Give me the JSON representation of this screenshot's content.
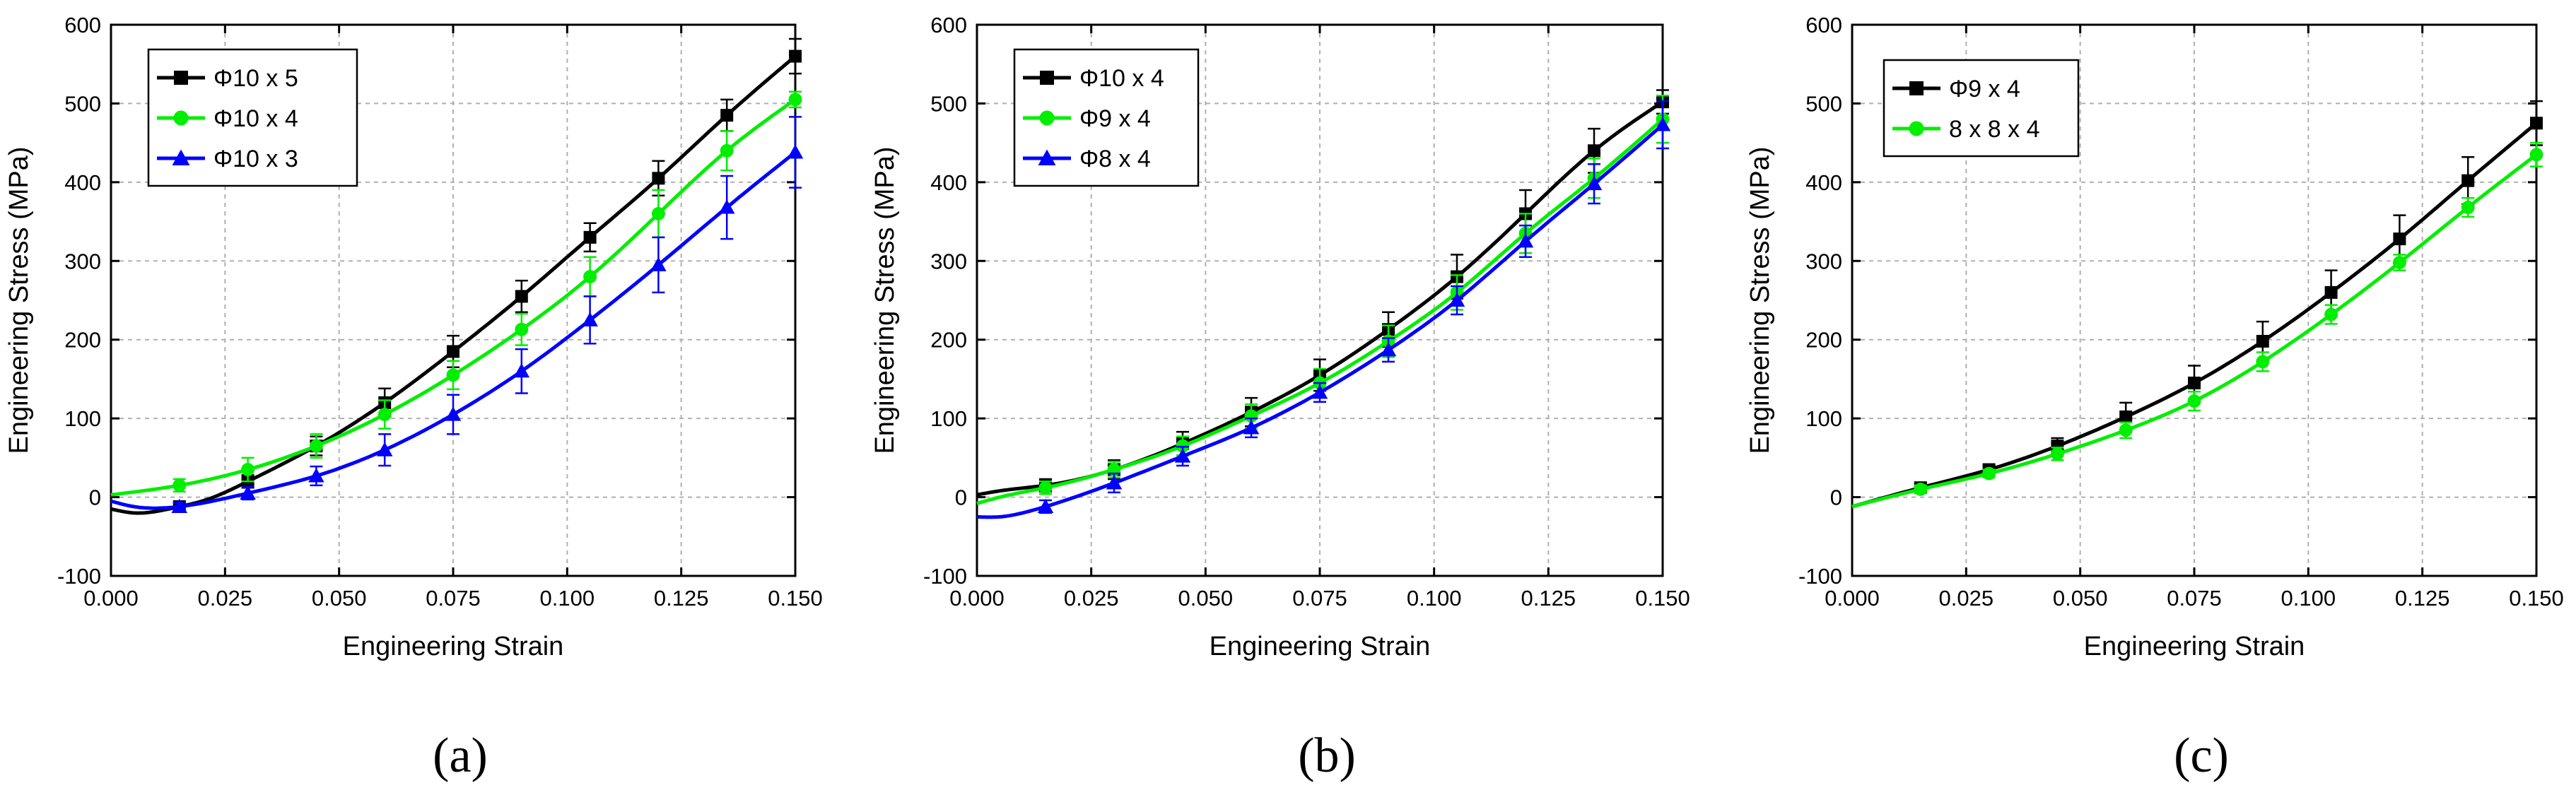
{
  "chart_data": [
    {
      "type": "line",
      "panel_label": "(a)",
      "xlabel": "Engineering Strain",
      "ylabel": "Engineering Stress (MPa)",
      "xlim": [
        0,
        0.15
      ],
      "ylim": [
        -100,
        600
      ],
      "xticks": [
        0,
        0.025,
        0.05,
        0.075,
        0.1,
        0.125,
        0.15
      ],
      "xtick_labels": [
        "0.000",
        "0.025",
        "0.050",
        "0.075",
        "0.100",
        "0.125",
        "0.150"
      ],
      "yticks": [
        -100,
        0,
        100,
        200,
        300,
        400,
        500,
        600
      ],
      "ytick_labels": [
        "-100",
        "0",
        "100",
        "200",
        "300",
        "400",
        "500",
        "600"
      ],
      "grid": true,
      "legend_position": "top-left",
      "series": [
        {
          "name": "Φ10 x 5",
          "color": "#000000",
          "marker": "square",
          "curve": [
            [
              0,
              -15
            ],
            [
              0.005,
              -20
            ],
            [
              0.01,
              -18
            ],
            [
              0.015,
              -12
            ],
            [
              0.02,
              -5
            ],
            [
              0.03,
              20
            ],
            [
              0.045,
              65
            ],
            [
              0.06,
              120
            ],
            [
              0.075,
              185
            ],
            [
              0.09,
              255
            ],
            [
              0.105,
              330
            ],
            [
              0.12,
              405
            ],
            [
              0.135,
              485
            ],
            [
              0.15,
              560
            ]
          ],
          "points": [
            [
              0.015,
              -12
            ],
            [
              0.03,
              20
            ],
            [
              0.045,
              65
            ],
            [
              0.06,
              120
            ],
            [
              0.075,
              185
            ],
            [
              0.09,
              255
            ],
            [
              0.105,
              330
            ],
            [
              0.12,
              405
            ],
            [
              0.135,
              485
            ],
            [
              0.15,
              560
            ]
          ],
          "errors": [
            5,
            8,
            12,
            18,
            20,
            20,
            18,
            22,
            20,
            22
          ]
        },
        {
          "name": "Φ10 x 4",
          "color": "#00ee00",
          "marker": "circle",
          "curve": [
            [
              0,
              3
            ],
            [
              0.015,
              15
            ],
            [
              0.03,
              35
            ],
            [
              0.045,
              65
            ],
            [
              0.06,
              105
            ],
            [
              0.075,
              155
            ],
            [
              0.09,
              213
            ],
            [
              0.105,
              280
            ],
            [
              0.12,
              360
            ],
            [
              0.135,
              440
            ],
            [
              0.15,
              505
            ]
          ],
          "points": [
            [
              0.015,
              15
            ],
            [
              0.03,
              35
            ],
            [
              0.045,
              65
            ],
            [
              0.06,
              105
            ],
            [
              0.075,
              155
            ],
            [
              0.09,
              213
            ],
            [
              0.105,
              280
            ],
            [
              0.12,
              360
            ],
            [
              0.135,
              440
            ],
            [
              0.15,
              505
            ]
          ],
          "errors": [
            8,
            15,
            15,
            18,
            18,
            20,
            25,
            30,
            25,
            10
          ]
        },
        {
          "name": "Φ10 x 3",
          "color": "#0000ff",
          "marker": "triangle",
          "curve": [
            [
              0,
              -5
            ],
            [
              0.005,
              -12
            ],
            [
              0.01,
              -14
            ],
            [
              0.015,
              -12
            ],
            [
              0.03,
              5
            ],
            [
              0.045,
              27
            ],
            [
              0.06,
              60
            ],
            [
              0.075,
              105
            ],
            [
              0.09,
              160
            ],
            [
              0.105,
              225
            ],
            [
              0.12,
              295
            ],
            [
              0.135,
              368
            ],
            [
              0.15,
              438
            ]
          ],
          "points": [
            [
              0.015,
              -12
            ],
            [
              0.03,
              5
            ],
            [
              0.045,
              27
            ],
            [
              0.06,
              60
            ],
            [
              0.075,
              105
            ],
            [
              0.09,
              160
            ],
            [
              0.105,
              225
            ],
            [
              0.12,
              295
            ],
            [
              0.135,
              368
            ],
            [
              0.15,
              438
            ]
          ],
          "errors": [
            5,
            8,
            12,
            20,
            25,
            28,
            30,
            35,
            40,
            45
          ]
        }
      ]
    },
    {
      "type": "line",
      "panel_label": "(b)",
      "xlabel": "Engineering Strain",
      "ylabel": "Engineering Stress (MPa)",
      "xlim": [
        0,
        0.15
      ],
      "ylim": [
        -100,
        600
      ],
      "xticks": [
        0,
        0.025,
        0.05,
        0.075,
        0.1,
        0.125,
        0.15
      ],
      "xtick_labels": [
        "0.000",
        "0.025",
        "0.050",
        "0.075",
        "0.100",
        "0.125",
        "0.150"
      ],
      "yticks": [
        -100,
        0,
        100,
        200,
        300,
        400,
        500,
        600
      ],
      "ytick_labels": [
        "-100",
        "0",
        "100",
        "200",
        "300",
        "400",
        "500",
        "600"
      ],
      "grid": true,
      "legend_position": "top-left",
      "series": [
        {
          "name": "Φ10 x 4",
          "color": "#000000",
          "marker": "square",
          "curve": [
            [
              0,
              3
            ],
            [
              0.005,
              8
            ],
            [
              0.015,
              15
            ],
            [
              0.03,
              35
            ],
            [
              0.045,
              68
            ],
            [
              0.06,
              108
            ],
            [
              0.075,
              155
            ],
            [
              0.09,
              213
            ],
            [
              0.105,
              280
            ],
            [
              0.12,
              360
            ],
            [
              0.135,
              440
            ],
            [
              0.15,
              502
            ]
          ],
          "points": [
            [
              0.015,
              15
            ],
            [
              0.03,
              35
            ],
            [
              0.045,
              68
            ],
            [
              0.06,
              108
            ],
            [
              0.075,
              155
            ],
            [
              0.09,
              213
            ],
            [
              0.105,
              280
            ],
            [
              0.12,
              360
            ],
            [
              0.135,
              440
            ],
            [
              0.15,
              502
            ]
          ],
          "errors": [
            8,
            12,
            15,
            18,
            20,
            22,
            28,
            30,
            28,
            15
          ]
        },
        {
          "name": "Φ9 x 4",
          "color": "#00ee00",
          "marker": "circle",
          "curve": [
            [
              0,
              -8
            ],
            [
              0.005,
              0
            ],
            [
              0.015,
              12
            ],
            [
              0.03,
              35
            ],
            [
              0.045,
              65
            ],
            [
              0.06,
              103
            ],
            [
              0.075,
              145
            ],
            [
              0.09,
              198
            ],
            [
              0.105,
              260
            ],
            [
              0.12,
              335
            ],
            [
              0.135,
              405
            ],
            [
              0.15,
              480
            ]
          ],
          "points": [
            [
              0.015,
              12
            ],
            [
              0.03,
              35
            ],
            [
              0.045,
              65
            ],
            [
              0.06,
              103
            ],
            [
              0.075,
              145
            ],
            [
              0.09,
              198
            ],
            [
              0.105,
              260
            ],
            [
              0.12,
              335
            ],
            [
              0.135,
              405
            ],
            [
              0.15,
              480
            ]
          ],
          "errors": [
            8,
            10,
            12,
            15,
            18,
            20,
            22,
            25,
            25,
            30
          ]
        },
        {
          "name": "Φ8 x 4",
          "color": "#0000ff",
          "marker": "triangle",
          "curve": [
            [
              0,
              -25
            ],
            [
              0.005,
              -25
            ],
            [
              0.01,
              -20
            ],
            [
              0.015,
              -12
            ],
            [
              0.03,
              18
            ],
            [
              0.045,
              52
            ],
            [
              0.06,
              88
            ],
            [
              0.075,
              133
            ],
            [
              0.09,
              187
            ],
            [
              0.105,
              250
            ],
            [
              0.12,
              325
            ],
            [
              0.135,
              398
            ],
            [
              0.15,
              473
            ]
          ],
          "points": [
            [
              0.015,
              -12
            ],
            [
              0.03,
              18
            ],
            [
              0.045,
              52
            ],
            [
              0.06,
              88
            ],
            [
              0.075,
              133
            ],
            [
              0.09,
              187
            ],
            [
              0.105,
              250
            ],
            [
              0.12,
              325
            ],
            [
              0.135,
              398
            ],
            [
              0.15,
              473
            ]
          ],
          "errors": [
            8,
            12,
            12,
            12,
            12,
            15,
            18,
            20,
            25,
            30
          ]
        }
      ]
    },
    {
      "type": "line",
      "panel_label": "(c)",
      "xlabel": "Engineering Strain",
      "ylabel": "Engineering Stress (MPa)",
      "xlim": [
        0,
        0.15
      ],
      "ylim": [
        -100,
        600
      ],
      "xticks": [
        0,
        0.025,
        0.05,
        0.075,
        0.1,
        0.125,
        0.15
      ],
      "xtick_labels": [
        "0.000",
        "0.025",
        "0.050",
        "0.075",
        "0.100",
        "0.125",
        "0.150"
      ],
      "yticks": [
        -100,
        0,
        100,
        200,
        300,
        400,
        500,
        600
      ],
      "ytick_labels": [
        "-100",
        "0",
        "100",
        "200",
        "300",
        "400",
        "500",
        "600"
      ],
      "grid": true,
      "legend_position": "top-left",
      "series": [
        {
          "name": "Φ9 x 4",
          "color": "#000000",
          "marker": "square",
          "curve": [
            [
              0,
              -12
            ],
            [
              0.015,
              12
            ],
            [
              0.03,
              35
            ],
            [
              0.045,
              65
            ],
            [
              0.06,
              102
            ],
            [
              0.075,
              145
            ],
            [
              0.09,
              198
            ],
            [
              0.105,
              260
            ],
            [
              0.12,
              328
            ],
            [
              0.135,
              402
            ],
            [
              0.15,
              475
            ]
          ],
          "points": [
            [
              0.015,
              12
            ],
            [
              0.03,
              35
            ],
            [
              0.045,
              65
            ],
            [
              0.06,
              102
            ],
            [
              0.075,
              145
            ],
            [
              0.09,
              198
            ],
            [
              0.105,
              260
            ],
            [
              0.12,
              328
            ],
            [
              0.135,
              402
            ],
            [
              0.15,
              475
            ]
          ],
          "errors": [
            5,
            5,
            10,
            18,
            22,
            25,
            28,
            30,
            30,
            28
          ]
        },
        {
          "name": "8 x 8 x 4",
          "color": "#00ee00",
          "marker": "circle",
          "curve": [
            [
              0,
              -12
            ],
            [
              0.015,
              10
            ],
            [
              0.03,
              30
            ],
            [
              0.045,
              55
            ],
            [
              0.06,
              85
            ],
            [
              0.075,
              122
            ],
            [
              0.09,
              172
            ],
            [
              0.105,
              232
            ],
            [
              0.12,
              298
            ],
            [
              0.135,
              368
            ],
            [
              0.15,
              435
            ]
          ],
          "points": [
            [
              0.015,
              10
            ],
            [
              0.03,
              30
            ],
            [
              0.045,
              55
            ],
            [
              0.06,
              85
            ],
            [
              0.075,
              122
            ],
            [
              0.09,
              172
            ],
            [
              0.105,
              232
            ],
            [
              0.12,
              298
            ],
            [
              0.135,
              368
            ],
            [
              0.15,
              435
            ]
          ],
          "errors": [
            5,
            5,
            8,
            10,
            12,
            12,
            12,
            10,
            12,
            15
          ]
        }
      ]
    }
  ]
}
